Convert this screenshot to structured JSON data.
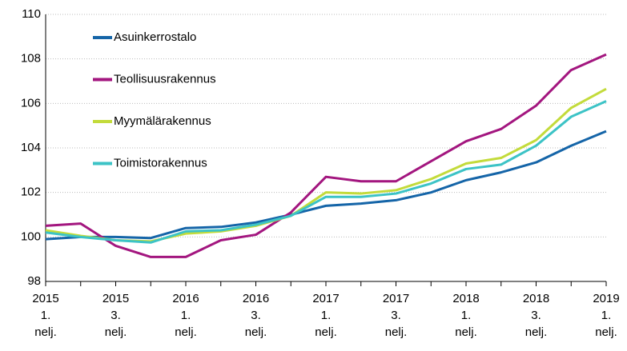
{
  "chart_data": {
    "type": "line",
    "categories": [
      [
        "2015",
        "1.",
        "nelj."
      ],
      null,
      [
        "2015",
        "3.",
        "nelj."
      ],
      null,
      [
        "2016",
        "1.",
        "nelj."
      ],
      null,
      [
        "2016",
        "3.",
        "nelj."
      ],
      null,
      [
        "2017",
        "1.",
        "nelj."
      ],
      null,
      [
        "2017",
        "3.",
        "nelj."
      ],
      null,
      [
        "2018",
        "1.",
        "nelj."
      ],
      null,
      [
        "2018",
        "3.",
        "nelj."
      ],
      null,
      [
        "2019",
        "1.",
        "nelj."
      ]
    ],
    "series": [
      {
        "name": "Asuinkerrostalo",
        "color": "#1565a8",
        "values": [
          99.9,
          100.0,
          100.0,
          99.95,
          100.4,
          100.45,
          100.65,
          101.0,
          101.4,
          101.5,
          101.65,
          102.0,
          102.55,
          102.9,
          103.35,
          104.1,
          104.75
        ]
      },
      {
        "name": "Teollisuusrakennus",
        "color": "#a3167f",
        "values": [
          100.5,
          100.6,
          99.6,
          99.1,
          99.1,
          99.85,
          100.1,
          101.1,
          102.7,
          102.5,
          102.5,
          103.4,
          104.3,
          104.85,
          105.9,
          107.5,
          108.2
        ]
      },
      {
        "name": "Myymälärakennus",
        "color": "#c3db3b",
        "values": [
          100.3,
          100.05,
          99.85,
          99.8,
          100.15,
          100.25,
          100.5,
          100.95,
          102.0,
          101.95,
          102.1,
          102.6,
          103.3,
          103.55,
          104.35,
          105.8,
          106.65
        ]
      },
      {
        "name": "Toimistorakennus",
        "color": "#3cc3c6",
        "values": [
          100.2,
          100.0,
          99.85,
          99.75,
          100.25,
          100.3,
          100.55,
          100.95,
          101.8,
          101.8,
          101.95,
          102.4,
          103.05,
          103.25,
          104.1,
          105.4,
          106.1
        ]
      }
    ],
    "ylim": [
      98,
      110
    ],
    "yticks": [
      98,
      100,
      102,
      104,
      106,
      108,
      110
    ],
    "grid": true,
    "legend": "upper left"
  }
}
